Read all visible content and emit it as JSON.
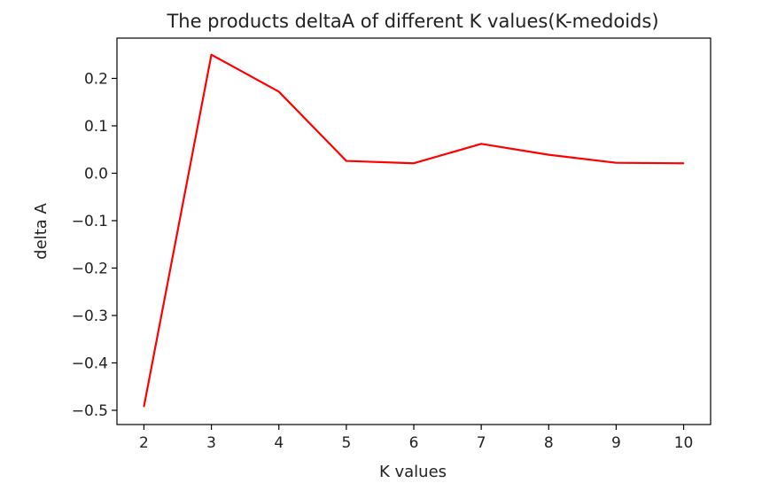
{
  "chart_data": {
    "type": "line",
    "title": "The products deltaA of different K values(K-medoids)",
    "xlabel": "K values",
    "ylabel": "delta A",
    "x": [
      2,
      3,
      4,
      5,
      6,
      7,
      8,
      9,
      10
    ],
    "series": [
      {
        "values": [
          -0.492,
          0.25,
          0.172,
          0.026,
          0.021,
          0.062,
          0.039,
          0.022,
          0.021
        ],
        "color": "#ff0000"
      }
    ],
    "xlim": [
      1.6,
      10.4
    ],
    "ylim": [
      -0.53,
      0.285
    ],
    "xticks": [
      "2",
      "3",
      "4",
      "5",
      "6",
      "7",
      "8",
      "9",
      "10"
    ],
    "yticks": [
      "0.2",
      "0.1",
      "0.0",
      "−0.1",
      "−0.2",
      "−0.3",
      "−0.4",
      "−0.5"
    ],
    "ytick_values": [
      0.2,
      0.1,
      0.0,
      -0.1,
      -0.2,
      -0.3,
      -0.4,
      -0.5
    ],
    "grid": false,
    "legend": "none"
  }
}
